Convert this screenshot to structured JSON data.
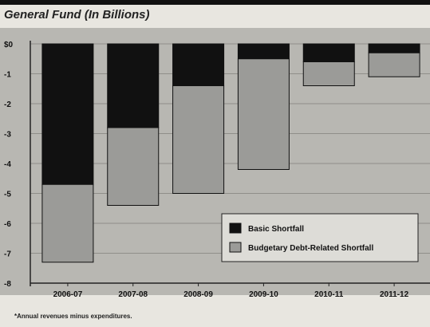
{
  "chart_data": {
    "type": "bar",
    "stacked": true,
    "title": "General Fund (In Billions)",
    "categories": [
      "2006-07",
      "2007-08",
      "2008-09",
      "2009-10",
      "2010-11",
      "2011-12"
    ],
    "series": [
      {
        "name": "Basic Shortfall",
        "values": [
          -4.7,
          -2.8,
          -1.4,
          -0.5,
          -0.6,
          -0.3
        ],
        "color": "#111111"
      },
      {
        "name": "Budgetary Debt-Related Shortfall",
        "values": [
          -2.6,
          -2.6,
          -3.6,
          -3.7,
          -0.8,
          -0.8
        ],
        "color": "#9b9b98"
      }
    ],
    "yticks": [
      "$0",
      "-1",
      "-2",
      "-3",
      "-4",
      "-5",
      "-6",
      "-7",
      "-8"
    ],
    "ylim": [
      -8,
      0
    ],
    "grid": true,
    "legend": "bottom-right",
    "footnote": "*Annual revenues minus expenditures."
  }
}
